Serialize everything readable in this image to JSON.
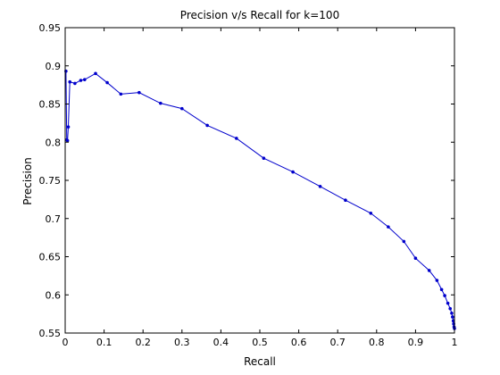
{
  "chart_data": {
    "type": "line",
    "title": "Precision v/s Recall for k=100",
    "xlabel": "Recall",
    "ylabel": "Precision",
    "xlim": [
      0,
      1
    ],
    "ylim": [
      0.55,
      0.95
    ],
    "grid": false,
    "x_ticks": [
      "0",
      "0.1",
      "0.2",
      "0.3",
      "0.4",
      "0.5",
      "0.6",
      "0.7",
      "0.8",
      "0.9",
      "1"
    ],
    "y_ticks": [
      "0.55",
      "0.6",
      "0.65",
      "0.7",
      "0.75",
      "0.8",
      "0.85",
      "0.9",
      "0.95"
    ],
    "series": [
      {
        "color": "#0000cc",
        "marker": "dot",
        "x": [
          0.002,
          0.004,
          0.006,
          0.008,
          0.012,
          0.025,
          0.04,
          0.05,
          0.078,
          0.108,
          0.143,
          0.19,
          0.245,
          0.3,
          0.365,
          0.44,
          0.51,
          0.585,
          0.655,
          0.72,
          0.785,
          0.83,
          0.87,
          0.9,
          0.935,
          0.955,
          0.967,
          0.975,
          0.983,
          0.989,
          0.993,
          0.995,
          0.997,
          0.998,
          0.999,
          1.0
        ],
        "y": [
          0.893,
          0.803,
          0.802,
          0.82,
          0.879,
          0.877,
          0.881,
          0.882,
          0.89,
          0.878,
          0.863,
          0.865,
          0.851,
          0.844,
          0.822,
          0.805,
          0.779,
          0.761,
          0.742,
          0.724,
          0.707,
          0.689,
          0.67,
          0.648,
          0.632,
          0.619,
          0.607,
          0.599,
          0.589,
          0.582,
          0.576,
          0.571,
          0.566,
          0.562,
          0.558,
          0.556
        ]
      }
    ]
  }
}
